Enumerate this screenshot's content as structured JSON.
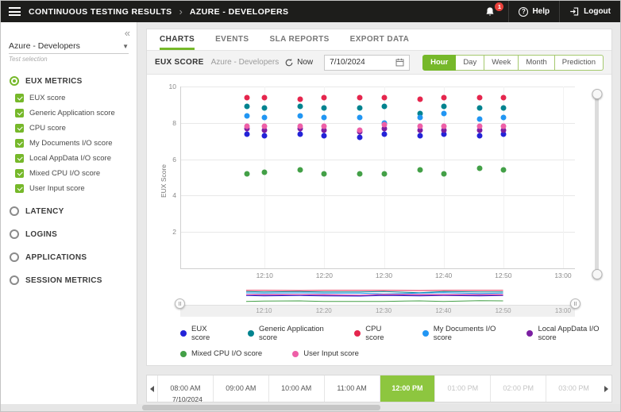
{
  "colors": {
    "accent": "#76b82a",
    "timeline_selected": "#8dc63f",
    "header_bg": "#1d1d1b",
    "badge_red": "#e8403a"
  },
  "header": {
    "title": "CONTINUOUS TESTING RESULTS",
    "separator": "›",
    "breadcrumb": "AZURE - DEVELOPERS",
    "notification_count": "1",
    "help_label": "Help",
    "logout_label": "Logout"
  },
  "sidebar": {
    "collapse_icon": "«",
    "test_selector": {
      "value": "Azure - Developers",
      "caption": "Test selection"
    },
    "categories": [
      {
        "label": "EUX METRICS",
        "selected": true
      },
      {
        "label": "LATENCY",
        "selected": false
      },
      {
        "label": "LOGINS",
        "selected": false
      },
      {
        "label": "APPLICATIONS",
        "selected": false
      },
      {
        "label": "SESSION METRICS",
        "selected": false
      }
    ],
    "metrics": [
      {
        "label": "EUX score",
        "checked": true
      },
      {
        "label": "Generic Application score",
        "checked": true
      },
      {
        "label": "CPU score",
        "checked": true
      },
      {
        "label": "My Documents I/O score",
        "checked": true
      },
      {
        "label": "Local AppData I/O score",
        "checked": true
      },
      {
        "label": "Mixed CPU I/O score",
        "checked": true
      },
      {
        "label": "User Input score",
        "checked": true
      }
    ]
  },
  "tabs": [
    {
      "label": "CHARTS",
      "active": true
    },
    {
      "label": "EVENTS",
      "active": false
    },
    {
      "label": "SLA REPORTS",
      "active": false
    },
    {
      "label": "EXPORT DATA",
      "active": false
    }
  ],
  "toolbar": {
    "title": "EUX SCORE",
    "subtitle": "Azure - Developers",
    "now_label": "Now",
    "date_value": "7/10/2024",
    "range_buttons": [
      {
        "label": "Hour",
        "active": true
      },
      {
        "label": "Day",
        "active": false
      },
      {
        "label": "Week",
        "active": false
      },
      {
        "label": "Month",
        "active": false
      },
      {
        "label": "Prediction",
        "active": false
      }
    ]
  },
  "chart_data": {
    "type": "scatter",
    "title": "EUX SCORE",
    "ylabel": "EUX Score",
    "ylim": [
      0,
      10
    ],
    "yticks": [
      2,
      4,
      6,
      8,
      10
    ],
    "grid": true,
    "legend_position": "bottom",
    "x_domain": [
      "11:56",
      "13:02"
    ],
    "xticks": [
      "12:10",
      "12:20",
      "12:30",
      "12:40",
      "12:50",
      "13:00"
    ],
    "x_times": [
      "12:07",
      "12:10",
      "12:16",
      "12:20",
      "12:26",
      "12:30",
      "12:36",
      "12:40",
      "12:46",
      "12:50"
    ],
    "series": [
      {
        "name": "EUX score",
        "color": "#2323d8",
        "values": [
          7.4,
          7.3,
          7.4,
          7.3,
          7.2,
          7.4,
          7.3,
          7.4,
          7.3,
          7.4
        ]
      },
      {
        "name": "Generic Application score",
        "color": "#00838f",
        "values": [
          8.9,
          8.8,
          8.9,
          8.8,
          8.8,
          8.9,
          8.5,
          8.9,
          8.8,
          8.8
        ]
      },
      {
        "name": "CPU score",
        "color": "#e5264d",
        "values": [
          9.4,
          9.4,
          9.3,
          9.4,
          9.4,
          9.4,
          9.3,
          9.4,
          9.4,
          9.4
        ]
      },
      {
        "name": "My Documents I/O score",
        "color": "#2196f3",
        "values": [
          8.4,
          8.3,
          8.4,
          8.3,
          8.3,
          8.0,
          8.3,
          8.5,
          8.2,
          8.3
        ]
      },
      {
        "name": "Local AppData I/O score",
        "color": "#7b1fa2",
        "values": [
          7.7,
          7.6,
          7.7,
          7.6,
          7.5,
          7.7,
          7.6,
          7.6,
          7.6,
          7.6
        ]
      },
      {
        "name": "Mixed CPU I/O score",
        "color": "#43a047",
        "values": [
          5.2,
          5.3,
          5.4,
          5.2,
          5.2,
          5.2,
          5.4,
          5.2,
          5.5,
          5.4
        ]
      },
      {
        "name": "User Input score",
        "color": "#ee5fa7",
        "values": [
          7.8,
          7.8,
          7.8,
          7.8,
          7.6,
          7.9,
          7.8,
          7.8,
          7.8,
          7.8
        ]
      }
    ],
    "legend_rows": [
      [
        0,
        1,
        2,
        3,
        4
      ],
      [
        5,
        6
      ]
    ],
    "navigator_xticks": [
      "12:10",
      "12:20",
      "12:30",
      "12:40",
      "12:50",
      "13:00"
    ]
  },
  "timeline": {
    "date_label": "7/10/2024",
    "slots": [
      {
        "label": "08:00 AM",
        "state": "normal"
      },
      {
        "label": "09:00 AM",
        "state": "normal"
      },
      {
        "label": "10:00 AM",
        "state": "normal"
      },
      {
        "label": "11:00 AM",
        "state": "normal"
      },
      {
        "label": "12:00 PM",
        "state": "selected"
      },
      {
        "label": "01:00 PM",
        "state": "disabled"
      },
      {
        "label": "02:00 PM",
        "state": "disabled"
      },
      {
        "label": "03:00 PM",
        "state": "disabled"
      }
    ]
  }
}
